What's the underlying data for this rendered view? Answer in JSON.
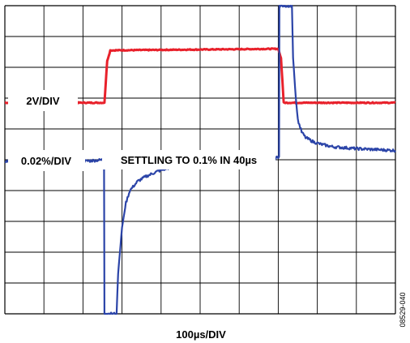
{
  "chart_data": {
    "type": "line",
    "title": "",
    "xlabel": "100µs/DIV",
    "ylabel": "",
    "x_unit": "µs",
    "x_range": [
      0,
      1000
    ],
    "x_divisions": 10,
    "y_divisions": 10,
    "grid": true,
    "annotations": {
      "upper_scale": "2V/DIV",
      "lower_scale": "0.02%/DIV",
      "settling": "SETTLING TO 0.1% IN 40µs"
    },
    "figure_id": "08529-040",
    "series": [
      {
        "color": "#e8212b",
        "scale": "2V/DIV",
        "unit": "div",
        "x": [
          0,
          255,
          262,
          270,
          700,
          707,
          714,
          1000
        ],
        "y": [
          6.85,
          6.85,
          8.2,
          8.55,
          8.6,
          8.3,
          6.85,
          6.85
        ]
      },
      {
        "color": "#2b44a8",
        "scale": "0.02%/DIV",
        "unit": "div",
        "x": [
          0,
          100,
          200,
          254,
          255,
          256,
          286,
          290,
          300,
          310,
          320,
          340,
          360,
          390,
          420,
          460,
          500,
          560,
          620,
          680,
          702,
          703,
          704,
          735,
          738,
          745,
          750,
          760,
          770,
          790,
          810,
          840,
          900,
          950,
          1000
        ],
        "y": [
          4.95,
          4.97,
          4.95,
          5.0,
          0.0,
          0.0,
          0.0,
          1.3,
          2.8,
          3.6,
          4.0,
          4.3,
          4.45,
          4.62,
          4.74,
          4.83,
          4.88,
          4.93,
          4.95,
          4.98,
          5.1,
          10.0,
          10.0,
          10.0,
          8.3,
          7.0,
          6.3,
          5.9,
          5.72,
          5.58,
          5.5,
          5.42,
          5.36,
          5.33,
          5.3
        ]
      }
    ]
  }
}
